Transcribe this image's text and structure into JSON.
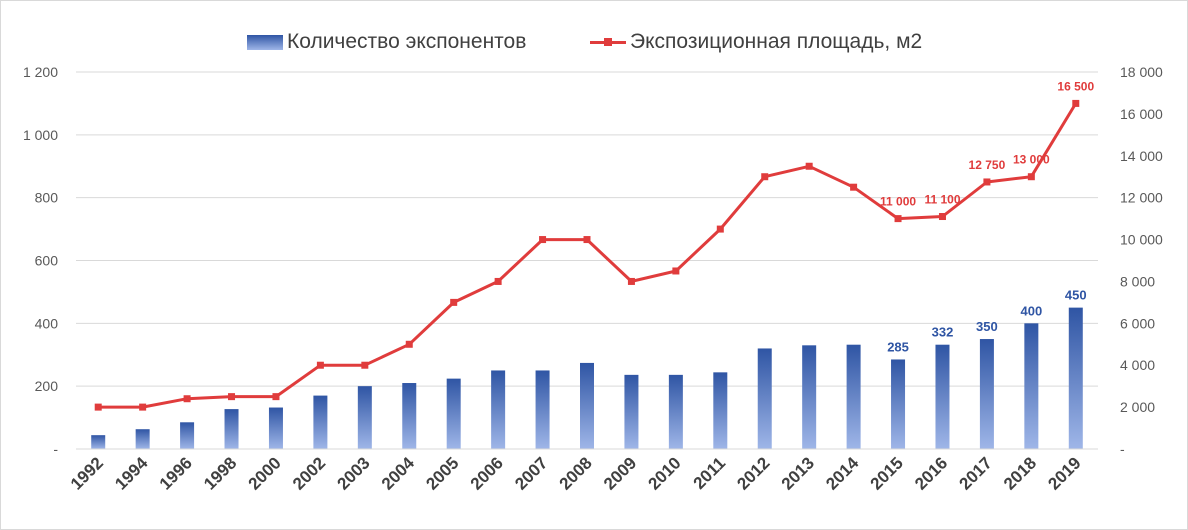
{
  "chart_data": {
    "type": "bar",
    "title": "",
    "xlabel": "",
    "ylabel": "",
    "legend_position": "top",
    "grid": "horizontal",
    "categories": [
      "1992",
      "1994",
      "1996",
      "1998",
      "2000",
      "2002",
      "2003",
      "2004",
      "2005",
      "2006",
      "2007",
      "2008",
      "2009",
      "2010",
      "2011",
      "2012",
      "2013",
      "2014",
      "2015",
      "2016",
      "2017",
      "2018",
      "2019"
    ],
    "series": [
      {
        "name": "Количество экспонентов",
        "type": "bar",
        "axis": "left",
        "color": "#2f55a4",
        "color_light": "#9fb6e8",
        "values": [
          44,
          63,
          85,
          127,
          132,
          170,
          200,
          210,
          224,
          250,
          250,
          274,
          236,
          236,
          244,
          320,
          330,
          332,
          285,
          332,
          350,
          400,
          450
        ],
        "data_labels": [
          {
            "category": "2015",
            "text": "285"
          },
          {
            "category": "2016",
            "text": "332"
          },
          {
            "category": "2017",
            "text": "350"
          },
          {
            "category": "2018",
            "text": "400"
          },
          {
            "category": "2019",
            "text": "450"
          }
        ]
      },
      {
        "name": "Экспозиционная площадь, м2",
        "type": "line",
        "axis": "right",
        "color": "#e03c3c",
        "values": [
          2000,
          2000,
          2400,
          2500,
          2500,
          4000,
          4000,
          5000,
          7000,
          8000,
          10000,
          10000,
          8000,
          8500,
          10500,
          13000,
          13500,
          12500,
          11000,
          11100,
          12750,
          13000,
          16500
        ],
        "data_labels": [
          {
            "category": "2015",
            "text": "11 000"
          },
          {
            "category": "2016",
            "text": "11 100"
          },
          {
            "category": "2017",
            "text": "12 750"
          },
          {
            "category": "2018",
            "text": "13 000"
          },
          {
            "category": "2019",
            "text": "16 500"
          }
        ]
      }
    ],
    "y_left": {
      "ylim": [
        0,
        1200
      ],
      "ticks": [
        0,
        200,
        400,
        600,
        800,
        1000,
        1200
      ],
      "tick_labels": [
        "-",
        "200",
        "400",
        "600",
        "800",
        "1 000",
        "1 200"
      ]
    },
    "y_right": {
      "ylim": [
        0,
        18000
      ],
      "ticks": [
        0,
        2000,
        4000,
        6000,
        8000,
        10000,
        12000,
        14000,
        16000,
        18000
      ],
      "tick_labels": [
        "-",
        "2 000",
        "4 000",
        "6 000",
        "8 000",
        "10 000",
        "12 000",
        "14 000",
        "16 000",
        "18 000"
      ]
    },
    "colors": {
      "axis_text": "#595959",
      "gridline": "#d9d9d9",
      "x_tick_text": "#404040"
    }
  }
}
